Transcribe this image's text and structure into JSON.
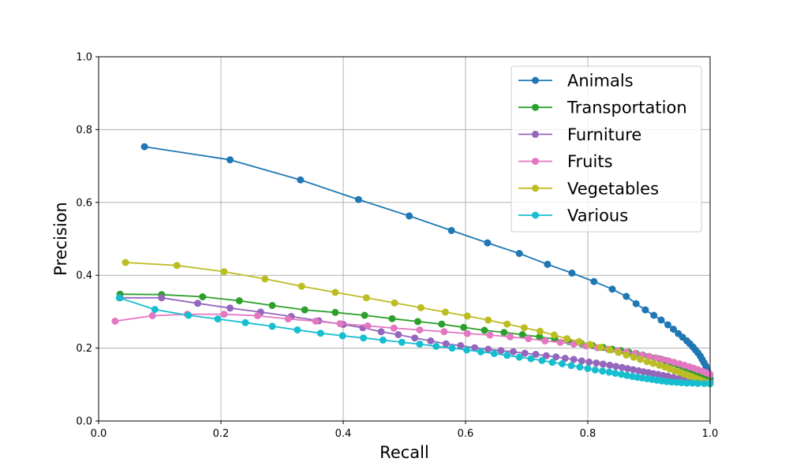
{
  "chart_data": {
    "type": "line",
    "title": "",
    "xlabel": "Recall",
    "ylabel": "Precision",
    "xlim": [
      0,
      1
    ],
    "ylim": [
      0,
      1
    ],
    "xticks": [
      "0.0",
      "0.2",
      "0.4",
      "0.6",
      "0.8",
      "1.0"
    ],
    "yticks": [
      "0.0",
      "0.2",
      "0.4",
      "0.6",
      "0.8",
      "1.0"
    ],
    "grid": true,
    "legend_position": "top-right",
    "series": [
      {
        "name": "Animals",
        "color": "#1f77b4",
        "x": [
          0.075,
          0.215,
          0.33,
          0.425,
          0.508,
          0.577,
          0.636,
          0.688,
          0.734,
          0.774,
          0.81,
          0.84,
          0.863,
          0.879,
          0.894,
          0.908,
          0.92,
          0.931,
          0.94,
          0.948,
          0.955,
          0.962,
          0.967,
          0.972,
          0.976,
          0.98,
          0.984,
          0.987,
          0.99,
          0.993,
          0.995,
          0.997,
          0.999,
          1.0
        ],
        "y": [
          0.753,
          0.717,
          0.662,
          0.608,
          0.563,
          0.523,
          0.489,
          0.46,
          0.43,
          0.406,
          0.383,
          0.362,
          0.342,
          0.322,
          0.305,
          0.29,
          0.277,
          0.264,
          0.252,
          0.24,
          0.23,
          0.22,
          0.212,
          0.203,
          0.195,
          0.187,
          0.178,
          0.169,
          0.16,
          0.151,
          0.142,
          0.133,
          0.125,
          0.117
        ]
      },
      {
        "name": "Transportation",
        "color": "#2ca02c",
        "x": [
          0.035,
          0.103,
          0.17,
          0.23,
          0.284,
          0.337,
          0.387,
          0.435,
          0.48,
          0.522,
          0.561,
          0.597,
          0.631,
          0.663,
          0.693,
          0.721,
          0.746,
          0.769,
          0.79,
          0.808,
          0.825,
          0.84,
          0.854,
          0.867,
          0.879,
          0.89,
          0.9,
          0.91,
          0.918,
          0.926,
          0.934,
          0.941,
          0.948,
          0.954,
          0.96,
          0.966,
          0.972,
          0.977,
          0.982,
          0.987,
          0.991,
          0.995,
          0.998,
          1.0
        ],
        "y": [
          0.348,
          0.347,
          0.341,
          0.33,
          0.317,
          0.305,
          0.298,
          0.29,
          0.281,
          0.273,
          0.266,
          0.257,
          0.249,
          0.243,
          0.237,
          0.231,
          0.225,
          0.218,
          0.212,
          0.207,
          0.202,
          0.197,
          0.193,
          0.189,
          0.185,
          0.181,
          0.177,
          0.173,
          0.17,
          0.166,
          0.162,
          0.158,
          0.154,
          0.15,
          0.146,
          0.143,
          0.139,
          0.135,
          0.131,
          0.127,
          0.124,
          0.12,
          0.117,
          0.113
        ]
      },
      {
        "name": "Furniture",
        "color": "#9467bd",
        "x": [
          0.035,
          0.103,
          0.162,
          0.215,
          0.265,
          0.315,
          0.36,
          0.4,
          0.432,
          0.462,
          0.49,
          0.517,
          0.543,
          0.568,
          0.592,
          0.615,
          0.637,
          0.658,
          0.678,
          0.697,
          0.715,
          0.732,
          0.748,
          0.763,
          0.777,
          0.79,
          0.802,
          0.814,
          0.825,
          0.836,
          0.846,
          0.856,
          0.865,
          0.874,
          0.883,
          0.891,
          0.899,
          0.907,
          0.915,
          0.923,
          0.931,
          0.94,
          0.95,
          0.96,
          0.97,
          0.98,
          0.99,
          1.0
        ],
        "y": [
          0.338,
          0.338,
          0.323,
          0.31,
          0.299,
          0.287,
          0.275,
          0.265,
          0.256,
          0.245,
          0.237,
          0.228,
          0.22,
          0.212,
          0.207,
          0.201,
          0.197,
          0.193,
          0.19,
          0.186,
          0.183,
          0.179,
          0.176,
          0.172,
          0.169,
          0.165,
          0.162,
          0.159,
          0.156,
          0.153,
          0.15,
          0.147,
          0.144,
          0.141,
          0.138,
          0.135,
          0.133,
          0.13,
          0.128,
          0.125,
          0.123,
          0.12,
          0.118,
          0.115,
          0.113,
          0.111,
          0.108,
          0.106
        ]
      },
      {
        "name": "Fruits",
        "color": "#e377c2",
        "x": [
          0.027,
          0.088,
          0.145,
          0.205,
          0.26,
          0.31,
          0.355,
          0.395,
          0.44,
          0.483,
          0.525,
          0.565,
          0.603,
          0.64,
          0.673,
          0.703,
          0.73,
          0.755,
          0.777,
          0.797,
          0.816,
          0.833,
          0.849,
          0.863,
          0.877,
          0.889,
          0.901,
          0.912,
          0.922,
          0.932,
          0.941,
          0.95,
          0.958,
          0.966,
          0.973,
          0.98,
          0.987,
          0.993,
          1.0
        ],
        "y": [
          0.274,
          0.289,
          0.293,
          0.293,
          0.289,
          0.28,
          0.274,
          0.267,
          0.261,
          0.255,
          0.25,
          0.245,
          0.24,
          0.236,
          0.231,
          0.226,
          0.22,
          0.216,
          0.211,
          0.206,
          0.201,
          0.197,
          0.193,
          0.189,
          0.185,
          0.181,
          0.177,
          0.173,
          0.169,
          0.165,
          0.161,
          0.157,
          0.153,
          0.149,
          0.145,
          0.141,
          0.137,
          0.133,
          0.128
        ]
      },
      {
        "name": "Vegetables",
        "color": "#bcbd22",
        "x": [
          0.044,
          0.128,
          0.205,
          0.272,
          0.332,
          0.387,
          0.438,
          0.484,
          0.527,
          0.567,
          0.603,
          0.637,
          0.668,
          0.696,
          0.722,
          0.745,
          0.766,
          0.786,
          0.804,
          0.821,
          0.836,
          0.85,
          0.863,
          0.875,
          0.886,
          0.897,
          0.907,
          0.917,
          0.926,
          0.934,
          0.942,
          0.95,
          0.957,
          0.964,
          0.971,
          0.977,
          0.983,
          0.989,
          0.995,
          1.0
        ],
        "y": [
          0.435,
          0.427,
          0.41,
          0.39,
          0.37,
          0.353,
          0.338,
          0.324,
          0.311,
          0.299,
          0.288,
          0.277,
          0.266,
          0.256,
          0.246,
          0.236,
          0.226,
          0.218,
          0.21,
          0.202,
          0.195,
          0.188,
          0.181,
          0.175,
          0.169,
          0.163,
          0.158,
          0.153,
          0.148,
          0.143,
          0.138,
          0.134,
          0.129,
          0.125,
          0.121,
          0.117,
          0.113,
          0.109,
          0.105,
          0.102
        ]
      },
      {
        "name": "Various",
        "color": "#17becf",
        "x": [
          0.034,
          0.092,
          0.147,
          0.195,
          0.24,
          0.284,
          0.325,
          0.363,
          0.399,
          0.433,
          0.465,
          0.496,
          0.525,
          0.552,
          0.578,
          0.602,
          0.625,
          0.647,
          0.668,
          0.688,
          0.707,
          0.725,
          0.742,
          0.758,
          0.773,
          0.787,
          0.8,
          0.812,
          0.824,
          0.835,
          0.845,
          0.855,
          0.864,
          0.873,
          0.881,
          0.889,
          0.897,
          0.905,
          0.913,
          0.921,
          0.929,
          0.937,
          0.945,
          0.953,
          0.962,
          0.971,
          0.98,
          0.99,
          1.0
        ],
        "y": [
          0.338,
          0.306,
          0.29,
          0.28,
          0.27,
          0.26,
          0.25,
          0.241,
          0.234,
          0.228,
          0.222,
          0.216,
          0.211,
          0.205,
          0.2,
          0.195,
          0.19,
          0.185,
          0.18,
          0.175,
          0.171,
          0.166,
          0.161,
          0.157,
          0.152,
          0.148,
          0.144,
          0.14,
          0.137,
          0.134,
          0.131,
          0.128,
          0.125,
          0.122,
          0.12,
          0.118,
          0.116,
          0.114,
          0.112,
          0.11,
          0.108,
          0.107,
          0.106,
          0.105,
          0.104,
          0.104,
          0.103,
          0.103,
          0.103
        ]
      }
    ]
  }
}
